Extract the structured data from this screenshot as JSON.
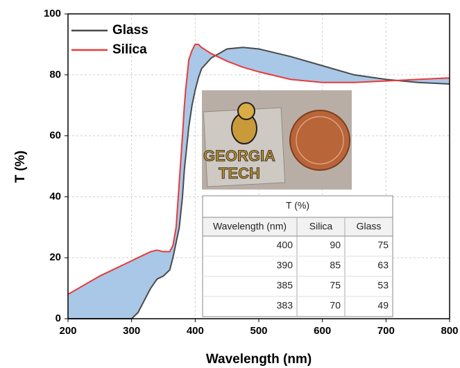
{
  "chart_data": {
    "type": "line",
    "xlabel": "Wavelength (nm)",
    "ylabel": "T (%)",
    "x": [
      200,
      250,
      300,
      310,
      320,
      330,
      340,
      350,
      360,
      365,
      370,
      375,
      380,
      383,
      385,
      390,
      395,
      400,
      405,
      410,
      425,
      450,
      475,
      500,
      550,
      600,
      650,
      700,
      750,
      800
    ],
    "series": [
      {
        "name": "Glass",
        "color": "#4a4a4a",
        "values": [
          0,
          0,
          0,
          2,
          6,
          10,
          13,
          14,
          16,
          20,
          25,
          30,
          40,
          49,
          53,
          63,
          70,
          75,
          79,
          82,
          85.5,
          88.5,
          89,
          88.5,
          86,
          83,
          80,
          78.5,
          77.5,
          77
        ]
      },
      {
        "name": "Silica",
        "color": "#e83a3a",
        "values": [
          8,
          14,
          19,
          20,
          21,
          22,
          22.5,
          22,
          22,
          24,
          30,
          45,
          60,
          70,
          75,
          85,
          88,
          90,
          90,
          89,
          87,
          84.5,
          82.5,
          81,
          78.5,
          77.5,
          77.5,
          78,
          78.5,
          79
        ]
      }
    ],
    "fill_color": "#a9c7e6",
    "xlim": [
      200,
      800
    ],
    "ylim": [
      0,
      100
    ],
    "xticks": [
      200,
      300,
      400,
      500,
      600,
      700,
      800
    ],
    "yticks": [
      0,
      20,
      40,
      60,
      80,
      100
    ],
    "grid": true,
    "legend": "upper left",
    "photo_labels": [
      "GEORGIA",
      "TECH"
    ],
    "table": {
      "title": "T (%)",
      "columns": [
        "Wavelength (nm)",
        "Silica",
        "Glass"
      ],
      "rows": [
        [
          400,
          90,
          75
        ],
        [
          390,
          85,
          63
        ],
        [
          385,
          75,
          53
        ],
        [
          383,
          70,
          49
        ]
      ]
    }
  }
}
